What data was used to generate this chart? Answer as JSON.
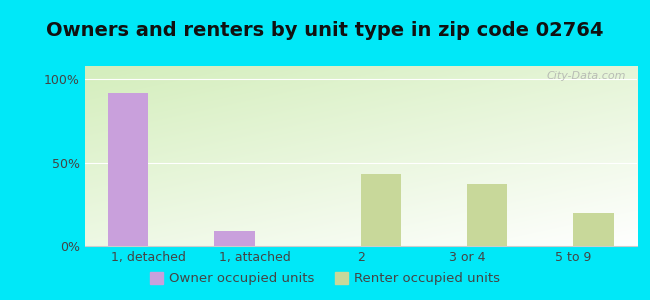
{
  "title": "Owners and renters by unit type in zip code 02764",
  "categories": [
    "1, detached",
    "1, attached",
    "2",
    "3 or 4",
    "5 to 9"
  ],
  "owner_values": [
    92,
    9,
    0,
    0,
    0
  ],
  "renter_values": [
    0,
    0,
    43,
    37,
    20
  ],
  "owner_color": "#c9a0dc",
  "renter_color": "#c8d89a",
  "yticks": [
    0,
    50,
    100
  ],
  "ytick_labels": [
    "0%",
    "50%",
    "100%"
  ],
  "ylim": [
    0,
    108
  ],
  "bar_width": 0.38,
  "background_outer": "#00e8f8",
  "legend_owner": "Owner occupied units",
  "legend_renter": "Renter occupied units",
  "title_fontsize": 14,
  "tick_fontsize": 9,
  "legend_fontsize": 9.5,
  "watermark": "City-Data.com"
}
